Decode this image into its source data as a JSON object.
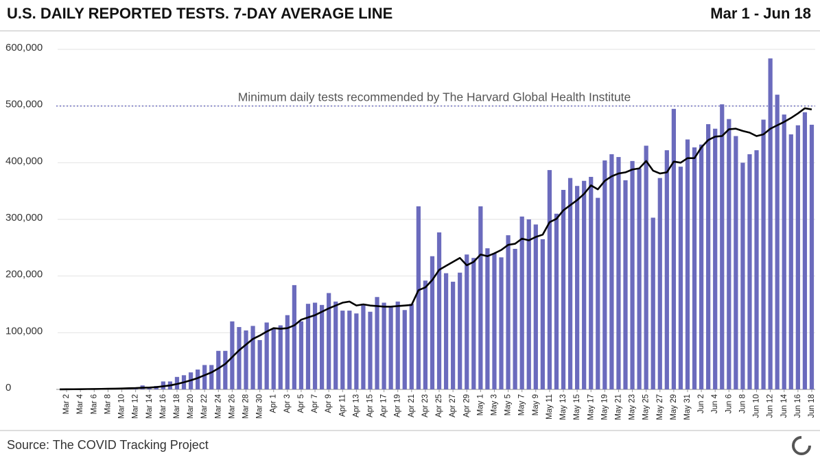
{
  "chart_data": {
    "type": "bar",
    "title": "U.S. DAILY REPORTED TESTS. 7-DAY AVERAGE LINE",
    "subtitle": "Mar 1 - Jun 18",
    "source": "Source: The COVID Tracking Project",
    "categories": [
      null,
      "Mar 2",
      null,
      "Mar 4",
      null,
      "Mar 6",
      null,
      "Mar 8",
      null,
      "Mar 10",
      null,
      "Mar 12",
      null,
      "Mar 14",
      null,
      "Mar 16",
      null,
      "Mar 18",
      null,
      "Mar 20",
      null,
      "Mar 22",
      null,
      "Mar 24",
      null,
      "Mar 26",
      null,
      "Mar 28",
      null,
      "Mar 30",
      null,
      "Apr 1",
      null,
      "Apr 3",
      null,
      "Apr 5",
      null,
      "Apr 7",
      null,
      "Apr 9",
      null,
      "Apr 11",
      null,
      "Apr 13",
      null,
      "Apr 15",
      null,
      "Apr 17",
      null,
      "Apr 19",
      null,
      "Apr 21",
      null,
      "Apr 23",
      null,
      "Apr 25",
      null,
      "Apr 27",
      null,
      "Apr 29",
      null,
      "May 1",
      null,
      "May 3",
      null,
      "May 5",
      null,
      "May 7",
      null,
      "May 9",
      null,
      "May 11",
      null,
      "May 13",
      null,
      "May 15",
      null,
      "May 17",
      null,
      "May 19",
      null,
      "May 21",
      null,
      "May 23",
      null,
      "May 25",
      null,
      "May 27",
      null,
      "May 29",
      null,
      "May 31",
      null,
      "Jun 2",
      null,
      "Jun 4",
      null,
      "Jun 6",
      null,
      "Jun 8",
      null,
      "Jun 10",
      null,
      "Jun 12",
      null,
      "Jun 14",
      null,
      "Jun 16",
      null,
      "Jun 18"
    ],
    "series": [
      {
        "type": "bar",
        "color": "#6b6bbd",
        "values": [
          0,
          200,
          300,
          500,
          700,
          1000,
          1000,
          1500,
          1200,
          2000,
          2500,
          3000,
          7000,
          3000,
          6000,
          14000,
          14000,
          22000,
          25000,
          30000,
          35000,
          43000,
          43000,
          68000,
          68000,
          120000,
          110000,
          104000,
          112000,
          87000,
          118000,
          107000,
          113000,
          131000,
          184000,
          120000,
          151000,
          153000,
          149000,
          170000,
          155000,
          139000,
          139000,
          134000,
          151000,
          137000,
          163000,
          153000,
          146000,
          155000,
          140000,
          151000,
          323000,
          192000,
          235000,
          277000,
          205000,
          190000,
          206000,
          238000,
          232000,
          323000,
          249000,
          240000,
          233000,
          272000,
          248000,
          305000,
          300000,
          291000,
          265000,
          387000,
          310000,
          352000,
          373000,
          359000,
          368000,
          375000,
          338000,
          404000,
          415000,
          410000,
          369000,
          403000,
          390000,
          430000,
          303000,
          373000,
          422000,
          495000,
          393000,
          441000,
          427000,
          432000,
          468000,
          460000,
          503000,
          477000,
          447000,
          400000,
          415000,
          422000,
          476000,
          584000,
          520000,
          485000,
          450000,
          466000,
          489000,
          467000
        ]
      },
      {
        "type": "line",
        "color": "#000000",
        "values": [
          100,
          200,
          300,
          400,
          600,
          700,
          900,
          1100,
          1300,
          1600,
          2000,
          2300,
          3000,
          3300,
          4000,
          5500,
          7000,
          9500,
          12500,
          16000,
          20000,
          25000,
          30000,
          37000,
          45000,
          57000,
          69000,
          79000,
          89000,
          95000,
          102000,
          108000,
          107000,
          108000,
          113000,
          123000,
          127000,
          131000,
          137000,
          143000,
          148000,
          153000,
          155000,
          148000,
          150000,
          148000,
          147000,
          146000,
          146000,
          147000,
          148000,
          149000,
          175000,
          180000,
          193000,
          211000,
          218000,
          225000,
          232000,
          219000,
          225000,
          238000,
          235000,
          240000,
          246000,
          255000,
          257000,
          266000,
          263000,
          269000,
          273000,
          295000,
          301000,
          316000,
          325000,
          334000,
          345000,
          360000,
          353000,
          368000,
          376000,
          381000,
          383000,
          388000,
          390000,
          403000,
          386000,
          381000,
          383000,
          402000,
          400000,
          408000,
          408000,
          427000,
          440000,
          446000,
          447000,
          459000,
          460000,
          456000,
          453000,
          447000,
          450000,
          460000,
          466000,
          472000,
          479000,
          487000,
          496000,
          494000
        ]
      }
    ],
    "reference_line": {
      "value": 500000,
      "label": "Minimum daily tests recommended by The Harvard Global Health Institute"
    },
    "ylim": [
      0,
      600000
    ],
    "yticks": [
      0,
      {
        "value": 100000,
        "label": "100,000"
      },
      {
        "value": 200000,
        "label": "200,000"
      },
      {
        "value": 300000,
        "label": "300,000"
      },
      {
        "value": 400000,
        "label": "400,000"
      },
      {
        "value": 500000,
        "label": "500,000"
      },
      {
        "value": 600000,
        "label": "600,000"
      }
    ],
    "grid": true
  }
}
